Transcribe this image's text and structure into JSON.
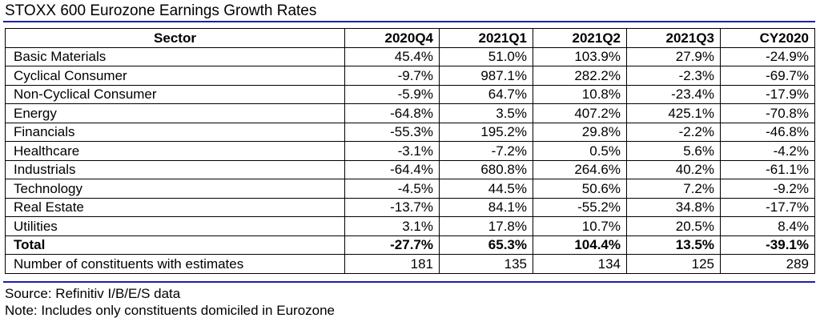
{
  "title": "STOXX 600 Eurozone Earnings Growth Rates",
  "header": {
    "sector": "Sector",
    "columns": [
      "2020Q4",
      "2021Q1",
      "2021Q2",
      "2021Q3",
      "CY2020"
    ]
  },
  "rows": [
    {
      "name": "Basic Materials",
      "values": [
        "45.4%",
        "51.0%",
        "103.9%",
        "27.9%",
        "-24.9%"
      ]
    },
    {
      "name": "Cyclical Consumer",
      "values": [
        "-9.7%",
        "987.1%",
        "282.2%",
        "-2.3%",
        "-69.7%"
      ]
    },
    {
      "name": "Non-Cyclical Consumer",
      "values": [
        "-5.9%",
        "64.7%",
        "10.8%",
        "-23.4%",
        "-17.9%"
      ]
    },
    {
      "name": "Energy",
      "values": [
        "-64.8%",
        "3.5%",
        "407.2%",
        "425.1%",
        "-70.8%"
      ]
    },
    {
      "name": "Financials",
      "values": [
        "-55.3%",
        "195.2%",
        "29.8%",
        "-2.2%",
        "-46.8%"
      ]
    },
    {
      "name": "Healthcare",
      "values": [
        "-3.1%",
        "-7.2%",
        "0.5%",
        "5.6%",
        "-4.2%"
      ]
    },
    {
      "name": "Industrials",
      "values": [
        "-64.4%",
        "680.8%",
        "264.6%",
        "40.2%",
        "-61.1%"
      ]
    },
    {
      "name": "Technology",
      "values": [
        "-4.5%",
        "44.5%",
        "50.6%",
        "7.2%",
        "-9.2%"
      ]
    },
    {
      "name": "Real Estate",
      "values": [
        "-13.7%",
        "84.1%",
        "-55.2%",
        "34.8%",
        "-17.7%"
      ]
    },
    {
      "name": "Utilities",
      "values": [
        "3.1%",
        "17.8%",
        "10.7%",
        "20.5%",
        "8.4%"
      ]
    }
  ],
  "total": {
    "name": "Total",
    "values": [
      "-27.7%",
      "65.3%",
      "104.4%",
      "13.5%",
      "-39.1%"
    ]
  },
  "constituents": {
    "name": "Number of constituents with estimates",
    "values": [
      "181",
      "135",
      "134",
      "125",
      "289"
    ]
  },
  "source": "Source: Refinitiv I/B/E/S data",
  "note": "Note: Includes only constituents domiciled in Eurozone",
  "colors": {
    "accent_rule": "#1f1fa8"
  }
}
